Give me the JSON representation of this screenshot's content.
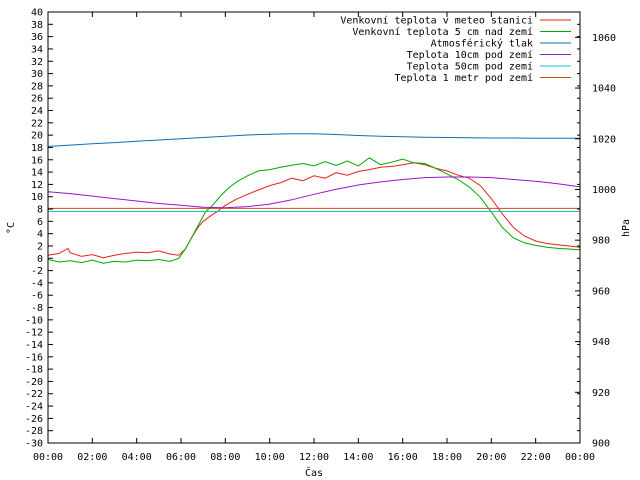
{
  "chart_data": {
    "type": "line",
    "title": "",
    "xlabel": "Čas",
    "ylabel_left": "°C",
    "ylabel_right": "hPa",
    "x_tick_labels": [
      "00:00",
      "02:00",
      "04:00",
      "06:00",
      "08:00",
      "10:00",
      "12:00",
      "14:00",
      "16:00",
      "18:00",
      "20:00",
      "22:00",
      "00:00"
    ],
    "xlim_hours": [
      0,
      24
    ],
    "ylim_left": [
      -30,
      40
    ],
    "y_left_step": 2,
    "ylim_right": [
      900,
      1070
    ],
    "y_right_ticks": [
      900,
      920,
      940,
      960,
      980,
      1000,
      1020,
      1040,
      1060
    ],
    "grid": false,
    "legend_position": "top-right",
    "series": [
      {
        "name": "Venkovní teplota v meteo stanici",
        "color": "#e8211b",
        "axis": "left",
        "x": [
          0,
          0.5,
          0.9,
          1.0,
          1.5,
          2,
          2.5,
          3,
          3.5,
          4,
          4.5,
          5,
          5.5,
          5.9,
          6.2,
          6.5,
          6.8,
          7.0,
          7.3,
          7.6,
          8,
          8.5,
          9,
          9.5,
          10,
          10.5,
          11,
          11.5,
          12,
          12.5,
          13,
          13.5,
          14,
          14.5,
          15,
          15.5,
          16,
          16.5,
          17,
          17.5,
          18,
          18.5,
          19,
          19.5,
          20,
          20.5,
          21,
          21.5,
          22,
          22.5,
          23,
          23.5,
          24
        ],
        "y": [
          0.5,
          0.8,
          1.6,
          0.9,
          0.3,
          0.6,
          0.1,
          0.5,
          0.8,
          1.0,
          0.9,
          1.2,
          0.7,
          0.5,
          1.5,
          3.5,
          5.2,
          6.0,
          6.8,
          7.5,
          8.6,
          9.6,
          10.4,
          11.1,
          11.8,
          12.3,
          13.0,
          12.6,
          13.4,
          13.0,
          13.9,
          13.5,
          14.1,
          14.4,
          14.8,
          14.9,
          15.2,
          15.5,
          15.2,
          14.6,
          14.2,
          13.5,
          13.0,
          11.8,
          9.7,
          7.2,
          5.0,
          3.6,
          2.8,
          2.4,
          2.2,
          2.0,
          1.8
        ]
      },
      {
        "name": "Venkovní teplota 5 cm nad zemí",
        "color": "#00a800",
        "axis": "left",
        "x": [
          0,
          0.5,
          1,
          1.5,
          2,
          2.5,
          3,
          3.5,
          4,
          4.5,
          5,
          5.5,
          5.9,
          6.2,
          6.5,
          6.8,
          7.1,
          7.4,
          7.8,
          8.2,
          8.6,
          9,
          9.5,
          10,
          10.5,
          11,
          11.5,
          12,
          12.5,
          13,
          13.5,
          14,
          14.5,
          15,
          15.5,
          16,
          16.5,
          17,
          17.5,
          18,
          18.5,
          19,
          19.5,
          20,
          20.5,
          21,
          21.5,
          22,
          22.5,
          23,
          23.5,
          24
        ],
        "y": [
          -0.2,
          -0.6,
          -0.4,
          -0.7,
          -0.3,
          -0.8,
          -0.5,
          -0.6,
          -0.3,
          -0.4,
          -0.2,
          -0.5,
          0.0,
          1.5,
          3.5,
          5.5,
          7.5,
          8.5,
          10.2,
          11.6,
          12.6,
          13.4,
          14.2,
          14.4,
          14.8,
          15.1,
          15.4,
          15.0,
          15.7,
          15.1,
          15.8,
          15.0,
          16.3,
          15.2,
          15.6,
          16.1,
          15.5,
          15.4,
          14.6,
          13.7,
          12.8,
          11.6,
          9.9,
          7.5,
          5.0,
          3.3,
          2.5,
          2.1,
          1.8,
          1.6,
          1.5,
          1.4
        ]
      },
      {
        "name": "Atmosférický tlak",
        "color": "#0a6fbf",
        "axis": "right",
        "x": [
          0,
          1,
          2,
          3,
          4,
          5,
          6,
          7,
          8,
          9,
          10,
          11,
          12,
          13,
          14,
          15,
          16,
          17,
          18,
          19,
          20,
          21,
          22,
          23,
          24
        ],
        "y": [
          1017.0,
          1017.5,
          1018.0,
          1018.5,
          1019.0,
          1019.5,
          1020.0,
          1020.5,
          1021.0,
          1021.5,
          1021.8,
          1022.0,
          1022.0,
          1021.7,
          1021.3,
          1021.0,
          1020.8,
          1020.6,
          1020.5,
          1020.4,
          1020.3,
          1020.3,
          1020.2,
          1020.2,
          1020.2
        ]
      },
      {
        "name": "Teplota 10cm pod zemí",
        "color": "#a012c8",
        "axis": "left",
        "x": [
          0,
          1,
          2,
          3,
          4,
          5,
          6,
          7,
          8,
          9,
          10,
          11,
          12,
          13,
          14,
          15,
          16,
          17,
          18,
          19,
          20,
          21,
          22,
          23,
          24
        ],
        "y": [
          10.8,
          10.5,
          10.1,
          9.7,
          9.3,
          8.9,
          8.6,
          8.3,
          8.2,
          8.4,
          8.8,
          9.5,
          10.4,
          11.2,
          11.9,
          12.4,
          12.8,
          13.1,
          13.2,
          13.2,
          13.1,
          12.8,
          12.5,
          12.1,
          11.6
        ]
      },
      {
        "name": "Teplota 50cm pod zemí",
        "color": "#10c8c8",
        "axis": "left",
        "x": [
          0,
          2,
          4,
          6,
          8,
          10,
          12,
          14,
          16,
          18,
          20,
          22,
          24
        ],
        "y": [
          7.6,
          7.6,
          7.6,
          7.6,
          7.6,
          7.6,
          7.6,
          7.6,
          7.6,
          7.6,
          7.6,
          7.6,
          7.6
        ]
      },
      {
        "name": "Teplota 1 metr pod zemí",
        "color": "#c85010",
        "axis": "left",
        "x": [
          0,
          24
        ],
        "y": [
          8.1,
          8.1
        ]
      }
    ]
  }
}
